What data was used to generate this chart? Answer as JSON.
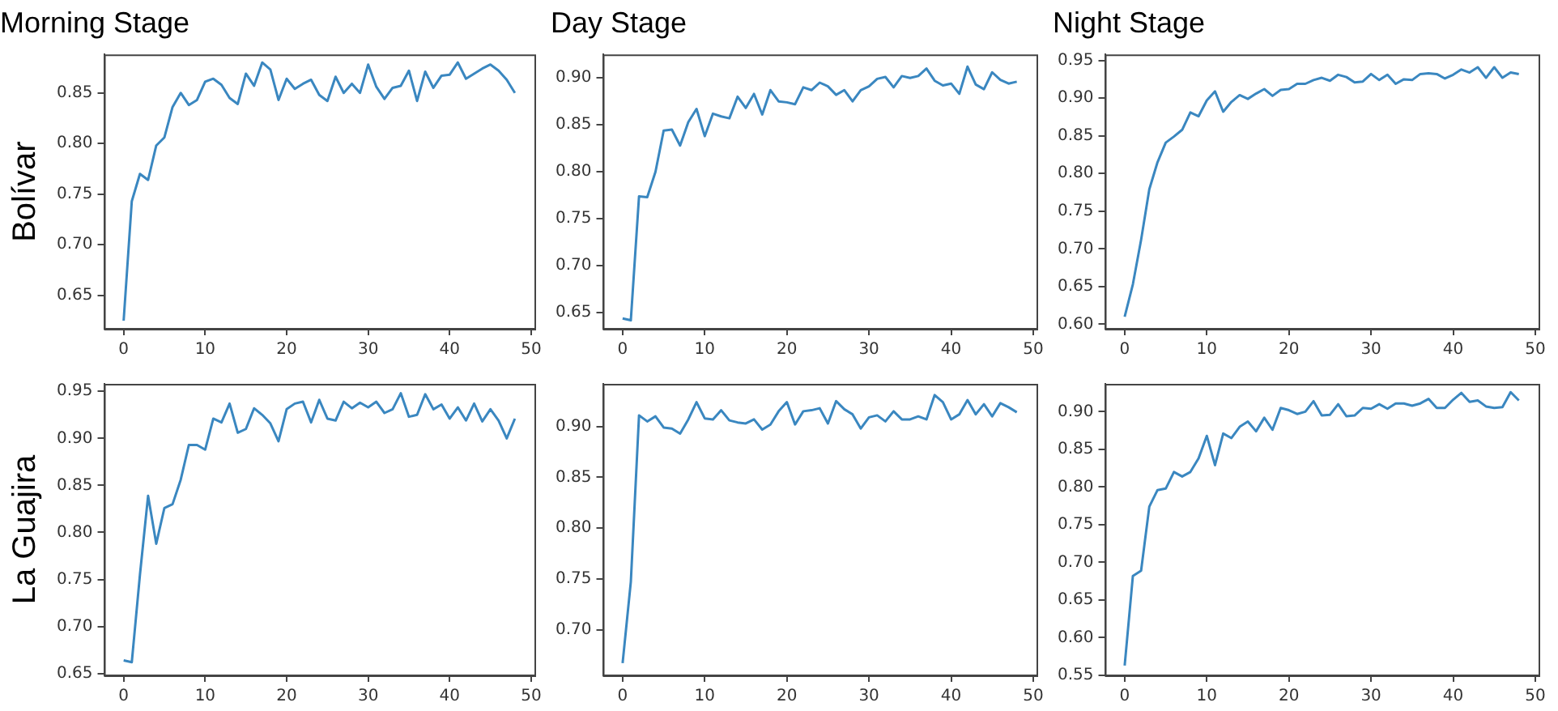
{
  "chart_data": [
    {
      "type": "line",
      "title": "Morning Stage",
      "ylabel": "Bolívar",
      "color": "#3a87c0",
      "x": [
        0,
        1,
        2,
        3,
        4,
        5,
        6,
        7,
        8,
        9,
        10,
        11,
        12,
        13,
        14,
        15,
        16,
        17,
        18,
        19,
        20,
        21,
        22,
        23,
        24,
        25,
        26,
        27,
        28,
        29,
        30,
        31,
        32,
        33,
        34,
        35,
        36,
        37,
        38,
        39,
        40,
        41,
        42,
        43,
        44,
        45,
        46,
        47,
        48
      ],
      "values": [
        0.625,
        0.743,
        0.77,
        0.764,
        0.798,
        0.806,
        0.836,
        0.85,
        0.838,
        0.843,
        0.861,
        0.864,
        0.858,
        0.845,
        0.839,
        0.869,
        0.857,
        0.88,
        0.873,
        0.843,
        0.864,
        0.854,
        0.859,
        0.863,
        0.848,
        0.842,
        0.866,
        0.85,
        0.859,
        0.85,
        0.878,
        0.856,
        0.844,
        0.855,
        0.857,
        0.872,
        0.842,
        0.871,
        0.855,
        0.867,
        0.868,
        0.88,
        0.864,
        0.869,
        0.874,
        0.878,
        0.872,
        0.863,
        0.85
      ],
      "xlim": [
        -2.4,
        50.4
      ],
      "xticks": [
        0,
        10,
        20,
        30,
        40,
        50
      ],
      "ylim": [
        0.617,
        0.888
      ],
      "yticks": [
        0.65,
        {
          "value": 0.7,
          "label": "0.70"
        },
        0.75,
        {
          "value": 0.8,
          "label": "0.80"
        },
        0.85
      ]
    },
    {
      "type": "line",
      "title": "Day Stage",
      "color": "#3a87c0",
      "x": [
        0,
        1,
        2,
        3,
        4,
        5,
        6,
        7,
        8,
        9,
        10,
        11,
        12,
        13,
        14,
        15,
        16,
        17,
        18,
        19,
        20,
        21,
        22,
        23,
        24,
        25,
        26,
        27,
        28,
        29,
        30,
        31,
        32,
        33,
        34,
        35,
        36,
        37,
        38,
        39,
        40,
        41,
        42,
        43,
        44,
        45,
        46,
        47,
        48
      ],
      "values": [
        0.644,
        0.642,
        0.774,
        0.773,
        0.8,
        0.844,
        0.845,
        0.828,
        0.853,
        0.867,
        0.838,
        0.862,
        0.859,
        0.857,
        0.88,
        0.868,
        0.883,
        0.861,
        0.887,
        0.875,
        0.874,
        0.872,
        0.89,
        0.887,
        0.895,
        0.891,
        0.882,
        0.887,
        0.875,
        0.887,
        0.891,
        0.899,
        0.901,
        0.89,
        0.902,
        0.9,
        0.902,
        0.91,
        0.897,
        0.892,
        0.894,
        0.883,
        0.912,
        0.893,
        0.888,
        0.906,
        0.898,
        0.894,
        0.896
      ],
      "xlim": [
        -2.4,
        50.4
      ],
      "xticks": [
        0,
        10,
        20,
        30,
        40,
        50
      ],
      "ylim": [
        0.633,
        0.925
      ],
      "yticks": [
        0.65,
        {
          "value": 0.7,
          "label": "0.70"
        },
        0.75,
        {
          "value": 0.8,
          "label": "0.80"
        },
        0.85,
        {
          "value": 0.9,
          "label": "0.90"
        }
      ]
    },
    {
      "type": "line",
      "title": "Night Stage",
      "color": "#3a87c0",
      "x": [
        0,
        1,
        2,
        3,
        4,
        5,
        6,
        7,
        8,
        9,
        10,
        11,
        12,
        13,
        14,
        15,
        16,
        17,
        18,
        19,
        20,
        21,
        22,
        23,
        24,
        25,
        26,
        27,
        28,
        29,
        30,
        31,
        32,
        33,
        34,
        35,
        36,
        37,
        38,
        39,
        40,
        41,
        42,
        43,
        44,
        45,
        46,
        47,
        48
      ],
      "values": [
        0.61,
        0.653,
        0.712,
        0.779,
        0.815,
        0.841,
        0.849,
        0.858,
        0.881,
        0.876,
        0.897,
        0.909,
        0.882,
        0.895,
        0.904,
        0.899,
        0.906,
        0.912,
        0.903,
        0.911,
        0.912,
        0.919,
        0.919,
        0.924,
        0.927,
        0.923,
        0.931,
        0.928,
        0.921,
        0.922,
        0.932,
        0.924,
        0.931,
        0.919,
        0.925,
        0.924,
        0.932,
        0.933,
        0.932,
        0.926,
        0.931,
        0.938,
        0.934,
        0.941,
        0.927,
        0.941,
        0.927,
        0.934,
        0.932
      ],
      "xlim": [
        -2.4,
        50.4
      ],
      "xticks": [
        0,
        10,
        20,
        30,
        40,
        50
      ],
      "ylim": [
        0.594,
        0.958
      ],
      "yticks": [
        {
          "value": 0.6,
          "label": "0.60"
        },
        0.65,
        {
          "value": 0.7,
          "label": "0.70"
        },
        0.75,
        {
          "value": 0.8,
          "label": "0.80"
        },
        0.85,
        {
          "value": 0.9,
          "label": "0.90"
        },
        0.95
      ]
    },
    {
      "type": "line",
      "ylabel": "La Guajira",
      "color": "#3a87c0",
      "x": [
        0,
        1,
        2,
        3,
        4,
        5,
        6,
        7,
        8,
        9,
        10,
        11,
        12,
        13,
        14,
        15,
        16,
        17,
        18,
        19,
        20,
        21,
        22,
        23,
        24,
        25,
        26,
        27,
        28,
        29,
        30,
        31,
        32,
        33,
        34,
        35,
        36,
        37,
        38,
        39,
        40,
        41,
        42,
        43,
        44,
        45,
        46,
        47,
        48
      ],
      "values": [
        0.664,
        0.662,
        0.755,
        0.839,
        0.788,
        0.826,
        0.83,
        0.856,
        0.893,
        0.893,
        0.888,
        0.921,
        0.917,
        0.937,
        0.906,
        0.91,
        0.932,
        0.925,
        0.916,
        0.897,
        0.931,
        0.937,
        0.939,
        0.917,
        0.941,
        0.921,
        0.919,
        0.939,
        0.932,
        0.938,
        0.933,
        0.939,
        0.927,
        0.931,
        0.948,
        0.923,
        0.925,
        0.947,
        0.931,
        0.936,
        0.921,
        0.933,
        0.919,
        0.937,
        0.918,
        0.931,
        0.919,
        0.9,
        0.921
      ],
      "xlim": [
        -2.4,
        50.4
      ],
      "xticks": [
        0,
        10,
        20,
        30,
        40,
        50
      ],
      "ylim": [
        0.648,
        0.958
      ],
      "yticks": [
        0.65,
        {
          "value": 0.7,
          "label": "0.70"
        },
        0.75,
        {
          "value": 0.8,
          "label": "0.80"
        },
        0.85,
        {
          "value": 0.9,
          "label": "0.90"
        },
        0.95
      ]
    },
    {
      "type": "line",
      "color": "#3a87c0",
      "x": [
        0,
        1,
        2,
        3,
        4,
        5,
        6,
        7,
        8,
        9,
        10,
        11,
        12,
        13,
        14,
        15,
        16,
        17,
        18,
        19,
        20,
        21,
        22,
        23,
        24,
        25,
        26,
        27,
        28,
        29,
        30,
        31,
        32,
        33,
        34,
        35,
        36,
        37,
        38,
        39,
        40,
        41,
        42,
        43,
        44,
        45,
        46,
        47,
        48
      ],
      "values": [
        0.667,
        0.747,
        0.911,
        0.905,
        0.91,
        0.899,
        0.898,
        0.893,
        0.907,
        0.924,
        0.908,
        0.907,
        0.916,
        0.906,
        0.904,
        0.903,
        0.907,
        0.897,
        0.902,
        0.915,
        0.924,
        0.902,
        0.915,
        0.916,
        0.918,
        0.903,
        0.925,
        0.917,
        0.912,
        0.898,
        0.909,
        0.911,
        0.905,
        0.915,
        0.907,
        0.907,
        0.91,
        0.907,
        0.931,
        0.924,
        0.907,
        0.912,
        0.926,
        0.912,
        0.922,
        0.91,
        0.923,
        0.919,
        0.914
      ],
      "xlim": [
        -2.4,
        50.4
      ],
      "xticks": [
        0,
        10,
        20,
        30,
        40,
        50
      ],
      "ylim": [
        0.655,
        0.942
      ],
      "yticks": [
        {
          "value": 0.7,
          "label": "0.70"
        },
        0.75,
        {
          "value": 0.8,
          "label": "0.80"
        },
        0.85,
        {
          "value": 0.9,
          "label": "0.90"
        }
      ]
    },
    {
      "type": "line",
      "color": "#3a87c0",
      "x": [
        0,
        1,
        2,
        3,
        4,
        5,
        6,
        7,
        8,
        9,
        10,
        11,
        12,
        13,
        14,
        15,
        16,
        17,
        18,
        19,
        20,
        21,
        22,
        23,
        24,
        25,
        26,
        27,
        28,
        29,
        30,
        31,
        32,
        33,
        34,
        35,
        36,
        37,
        38,
        39,
        40,
        41,
        42,
        43,
        44,
        45,
        46,
        47,
        48
      ],
      "values": [
        0.563,
        0.682,
        0.689,
        0.774,
        0.796,
        0.798,
        0.82,
        0.814,
        0.82,
        0.838,
        0.868,
        0.829,
        0.871,
        0.865,
        0.88,
        0.887,
        0.874,
        0.892,
        0.876,
        0.905,
        0.902,
        0.897,
        0.9,
        0.914,
        0.895,
        0.896,
        0.91,
        0.894,
        0.895,
        0.905,
        0.904,
        0.91,
        0.904,
        0.911,
        0.911,
        0.908,
        0.911,
        0.917,
        0.905,
        0.905,
        0.916,
        0.925,
        0.913,
        0.915,
        0.907,
        0.905,
        0.906,
        0.926,
        0.915
      ],
      "xlim": [
        -2.4,
        50.4
      ],
      "xticks": [
        0,
        10,
        20,
        30,
        40,
        50
      ],
      "ylim": [
        0.55,
        0.937
      ],
      "yticks": [
        0.55,
        {
          "value": 0.6,
          "label": "0.60"
        },
        0.65,
        {
          "value": 0.7,
          "label": "0.70"
        },
        0.75,
        {
          "value": 0.8,
          "label": "0.80"
        },
        0.85,
        {
          "value": 0.9,
          "label": "0.90"
        }
      ]
    }
  ]
}
